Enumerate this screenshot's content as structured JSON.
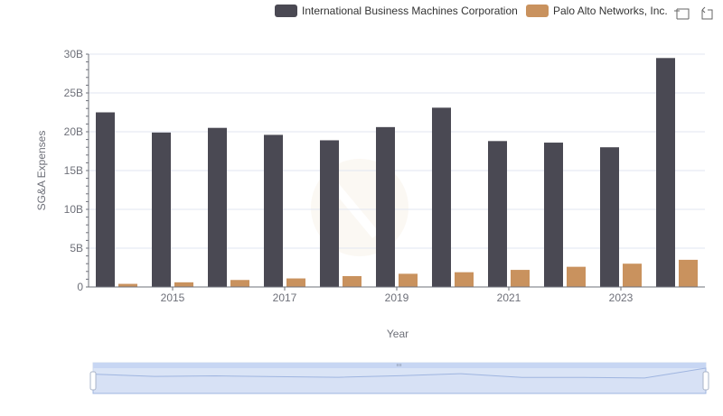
{
  "toolbox": {
    "icons": [
      "zoom-icon",
      "zoom-reset-icon"
    ]
  },
  "chart_data": {
    "type": "bar",
    "title": "",
    "xlabel": "Year",
    "ylabel": "SG&A Expenses",
    "categories": [
      "2014",
      "2015",
      "2016",
      "2017",
      "2018",
      "2019",
      "2020",
      "2021",
      "2022",
      "2023",
      "2024"
    ],
    "x_tick_labels": [
      "2015",
      "2017",
      "2019",
      "2021",
      "2023"
    ],
    "y_tick_labels": [
      "0",
      "5B",
      "10B",
      "15B",
      "20B",
      "25B",
      "30B"
    ],
    "ylim": [
      0,
      30000000000
    ],
    "grid": true,
    "legend_position": "top-right",
    "series": [
      {
        "name": "International Business Machines Corporation",
        "color": "#4a4953",
        "values": [
          22500000000,
          19900000000,
          20500000000,
          19600000000,
          18900000000,
          20600000000,
          23100000000,
          18800000000,
          18600000000,
          18000000000,
          29500000000
        ]
      },
      {
        "name": "Palo Alto Networks, Inc.",
        "color": "#c9925e",
        "values": [
          400000000,
          600000000,
          900000000,
          1100000000,
          1400000000,
          1700000000,
          1900000000,
          2200000000,
          2600000000,
          3000000000,
          3500000000
        ]
      }
    ]
  }
}
